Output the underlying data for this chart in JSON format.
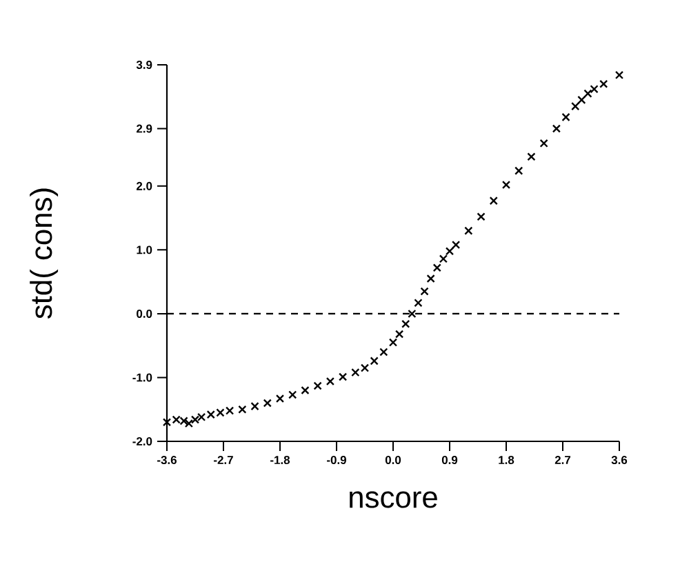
{
  "chart_data": {
    "type": "scatter",
    "xlabel": "nscore",
    "ylabel": "std( cons)",
    "marker": "cross",
    "color": "#000000",
    "grid": false,
    "xlim": [
      -3.6,
      3.6
    ],
    "ylim": [
      -2.0,
      3.9
    ],
    "xticks": [
      {
        "value": -3.6,
        "label": "-3.6"
      },
      {
        "value": -2.7,
        "label": "-2.7"
      },
      {
        "value": -1.8,
        "label": "-1.8"
      },
      {
        "value": -0.9,
        "label": "-0.9"
      },
      {
        "value": 0.0,
        "label": "0.0"
      },
      {
        "value": 0.9,
        "label": "0.9"
      },
      {
        "value": 1.8,
        "label": "1.8"
      },
      {
        "value": 2.7,
        "label": "2.7"
      },
      {
        "value": 3.6,
        "label": "3.6"
      }
    ],
    "yticks": [
      {
        "value": -2.0,
        "label": "-2.0"
      },
      {
        "value": -1.0,
        "label": "-1.0"
      },
      {
        "value": 0.0,
        "label": "0.0"
      },
      {
        "value": 1.0,
        "label": "1.0"
      },
      {
        "value": 2.0,
        "label": "2.0"
      },
      {
        "value": 2.9,
        "label": "2.9"
      },
      {
        "value": 3.9,
        "label": "3.9"
      }
    ],
    "ref_lines": [
      {
        "axis": "y",
        "value": 0.0,
        "line_style": "dashed",
        "color": "#000000"
      }
    ],
    "x": [
      -3.6,
      -3.45,
      -3.33,
      -3.25,
      -3.15,
      -3.05,
      -2.9,
      -2.75,
      -2.6,
      -2.4,
      -2.2,
      -2.0,
      -1.8,
      -1.6,
      -1.4,
      -1.2,
      -1.0,
      -0.8,
      -0.6,
      -0.45,
      -0.3,
      -0.15,
      0.0,
      0.1,
      0.2,
      0.3,
      0.4,
      0.5,
      0.6,
      0.7,
      0.8,
      0.9,
      1.0,
      1.2,
      1.4,
      1.6,
      1.8,
      2.0,
      2.2,
      2.4,
      2.6,
      2.75,
      2.9,
      3.0,
      3.1,
      3.2,
      3.35,
      3.6
    ],
    "values": [
      -1.7,
      -1.66,
      -1.68,
      -1.72,
      -1.66,
      -1.62,
      -1.58,
      -1.55,
      -1.52,
      -1.5,
      -1.45,
      -1.4,
      -1.33,
      -1.27,
      -1.2,
      -1.13,
      -1.06,
      -0.99,
      -0.92,
      -0.85,
      -0.74,
      -0.6,
      -0.45,
      -0.32,
      -0.16,
      0.0,
      0.17,
      0.35,
      0.55,
      0.72,
      0.86,
      0.98,
      1.08,
      1.3,
      1.52,
      1.77,
      2.02,
      2.24,
      2.46,
      2.67,
      2.9,
      3.08,
      3.25,
      3.35,
      3.45,
      3.52,
      3.6,
      3.74
    ]
  }
}
